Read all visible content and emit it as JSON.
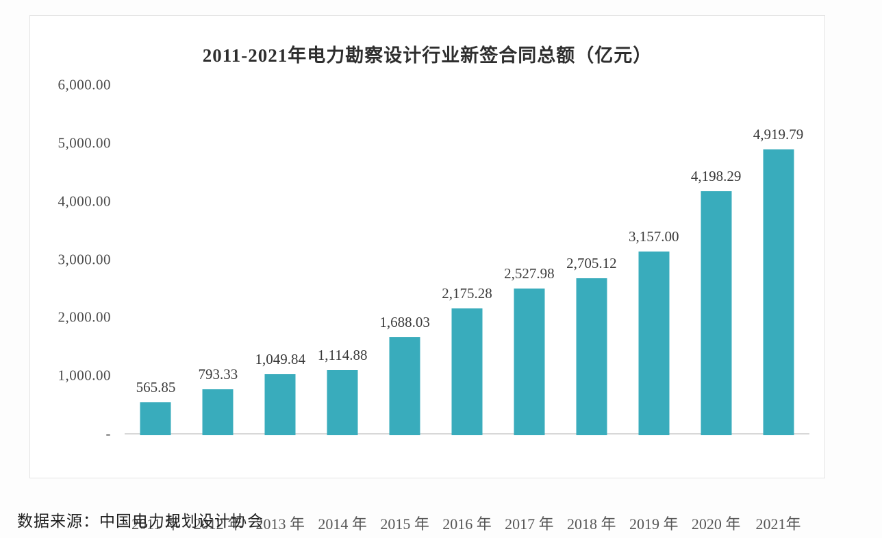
{
  "chart_data": {
    "type": "bar",
    "title": "2011-2021年电力勘察设计行业新签合同总额（亿元）",
    "categories": [
      "2011 年",
      "2012 年",
      "2013 年",
      "2014 年",
      "2015 年",
      "2016 年",
      "2017 年",
      "2018 年",
      "2019 年",
      "2020 年",
      "2021年"
    ],
    "values": [
      565.85,
      793.33,
      1049.84,
      1114.88,
      1688.03,
      2175.28,
      2527.98,
      2705.12,
      3157.0,
      4198.29,
      4919.79
    ],
    "value_labels": [
      "565.85",
      "793.33",
      "1,049.84",
      "1,114.88",
      "1,688.03",
      "2,175.28",
      "2,527.98",
      "2,705.12",
      "3,157.00",
      "4,198.29",
      "4,919.79"
    ],
    "xlabel": "",
    "ylabel": "",
    "ylim": [
      0,
      6000
    ],
    "y_ticks": [
      "6,000.00",
      "5,000.00",
      "4,000.00",
      "3,000.00",
      "2,000.00",
      "1,000.00",
      "-"
    ],
    "grid": false,
    "legend": false,
    "bar_color": "#39acbc",
    "axis_line_color": "#d8d8d8"
  },
  "source": {
    "label": "数据来源：中国电力规划设计协会"
  }
}
